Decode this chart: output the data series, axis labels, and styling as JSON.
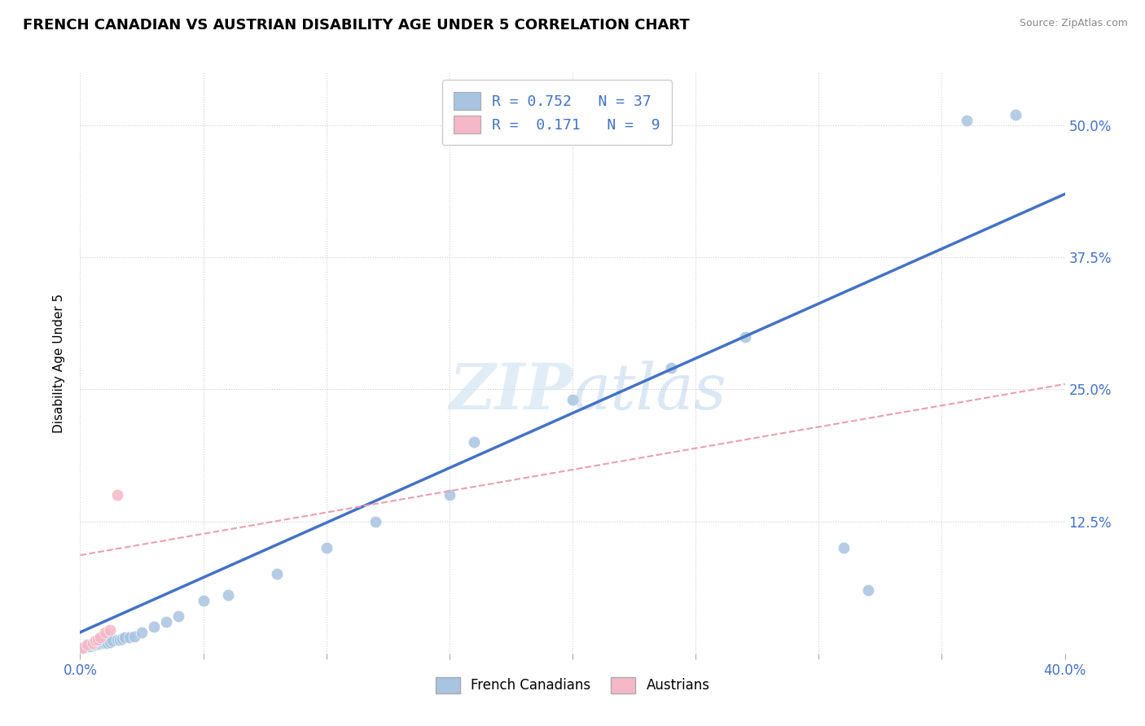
{
  "title": "FRENCH CANADIAN VS AUSTRIAN DISABILITY AGE UNDER 5 CORRELATION CHART",
  "source": "Source: ZipAtlas.com",
  "ylabel": "Disability Age Under 5",
  "xlim": [
    0.0,
    0.4
  ],
  "ylim": [
    0.0,
    0.55
  ],
  "x_ticks": [
    0.0,
    0.05,
    0.1,
    0.15,
    0.2,
    0.25,
    0.3,
    0.35,
    0.4
  ],
  "y_ticks": [
    0.0,
    0.125,
    0.25,
    0.375,
    0.5
  ],
  "french_color": "#a8c4e0",
  "austrian_color": "#f4b8c8",
  "line_color_french": "#4472c4",
  "line_color_austrian": "#e8a0b0",
  "text_color": "#4472c4",
  "french_x": [
    0.001,
    0.002,
    0.003,
    0.004,
    0.005,
    0.006,
    0.007,
    0.008,
    0.009,
    0.01,
    0.011,
    0.012,
    0.013,
    0.015,
    0.016,
    0.017,
    0.018,
    0.02,
    0.022,
    0.025,
    0.03,
    0.035,
    0.04,
    0.05,
    0.06,
    0.08,
    0.1,
    0.12,
    0.15,
    0.16,
    0.2,
    0.24,
    0.27,
    0.31,
    0.32,
    0.36,
    0.38
  ],
  "french_y": [
    0.005,
    0.006,
    0.007,
    0.007,
    0.008,
    0.008,
    0.009,
    0.009,
    0.01,
    0.01,
    0.01,
    0.011,
    0.012,
    0.013,
    0.013,
    0.014,
    0.015,
    0.015,
    0.016,
    0.02,
    0.025,
    0.03,
    0.035,
    0.05,
    0.055,
    0.075,
    0.1,
    0.125,
    0.15,
    0.2,
    0.24,
    0.27,
    0.3,
    0.1,
    0.06,
    0.505,
    0.51
  ],
  "austrian_x": [
    0.001,
    0.003,
    0.005,
    0.006,
    0.007,
    0.008,
    0.01,
    0.012,
    0.015
  ],
  "austrian_y": [
    0.005,
    0.008,
    0.01,
    0.012,
    0.013,
    0.015,
    0.02,
    0.022,
    0.15
  ],
  "french_line_x0": 0.0,
  "french_line_y0": 0.02,
  "french_line_x1": 0.4,
  "french_line_y1": 0.435,
  "austrian_line_x0": 0.0,
  "austrian_line_y0": 0.093,
  "austrian_line_x1": 0.4,
  "austrian_line_y1": 0.255,
  "background_color": "#ffffff",
  "grid_color": "#cccccc"
}
